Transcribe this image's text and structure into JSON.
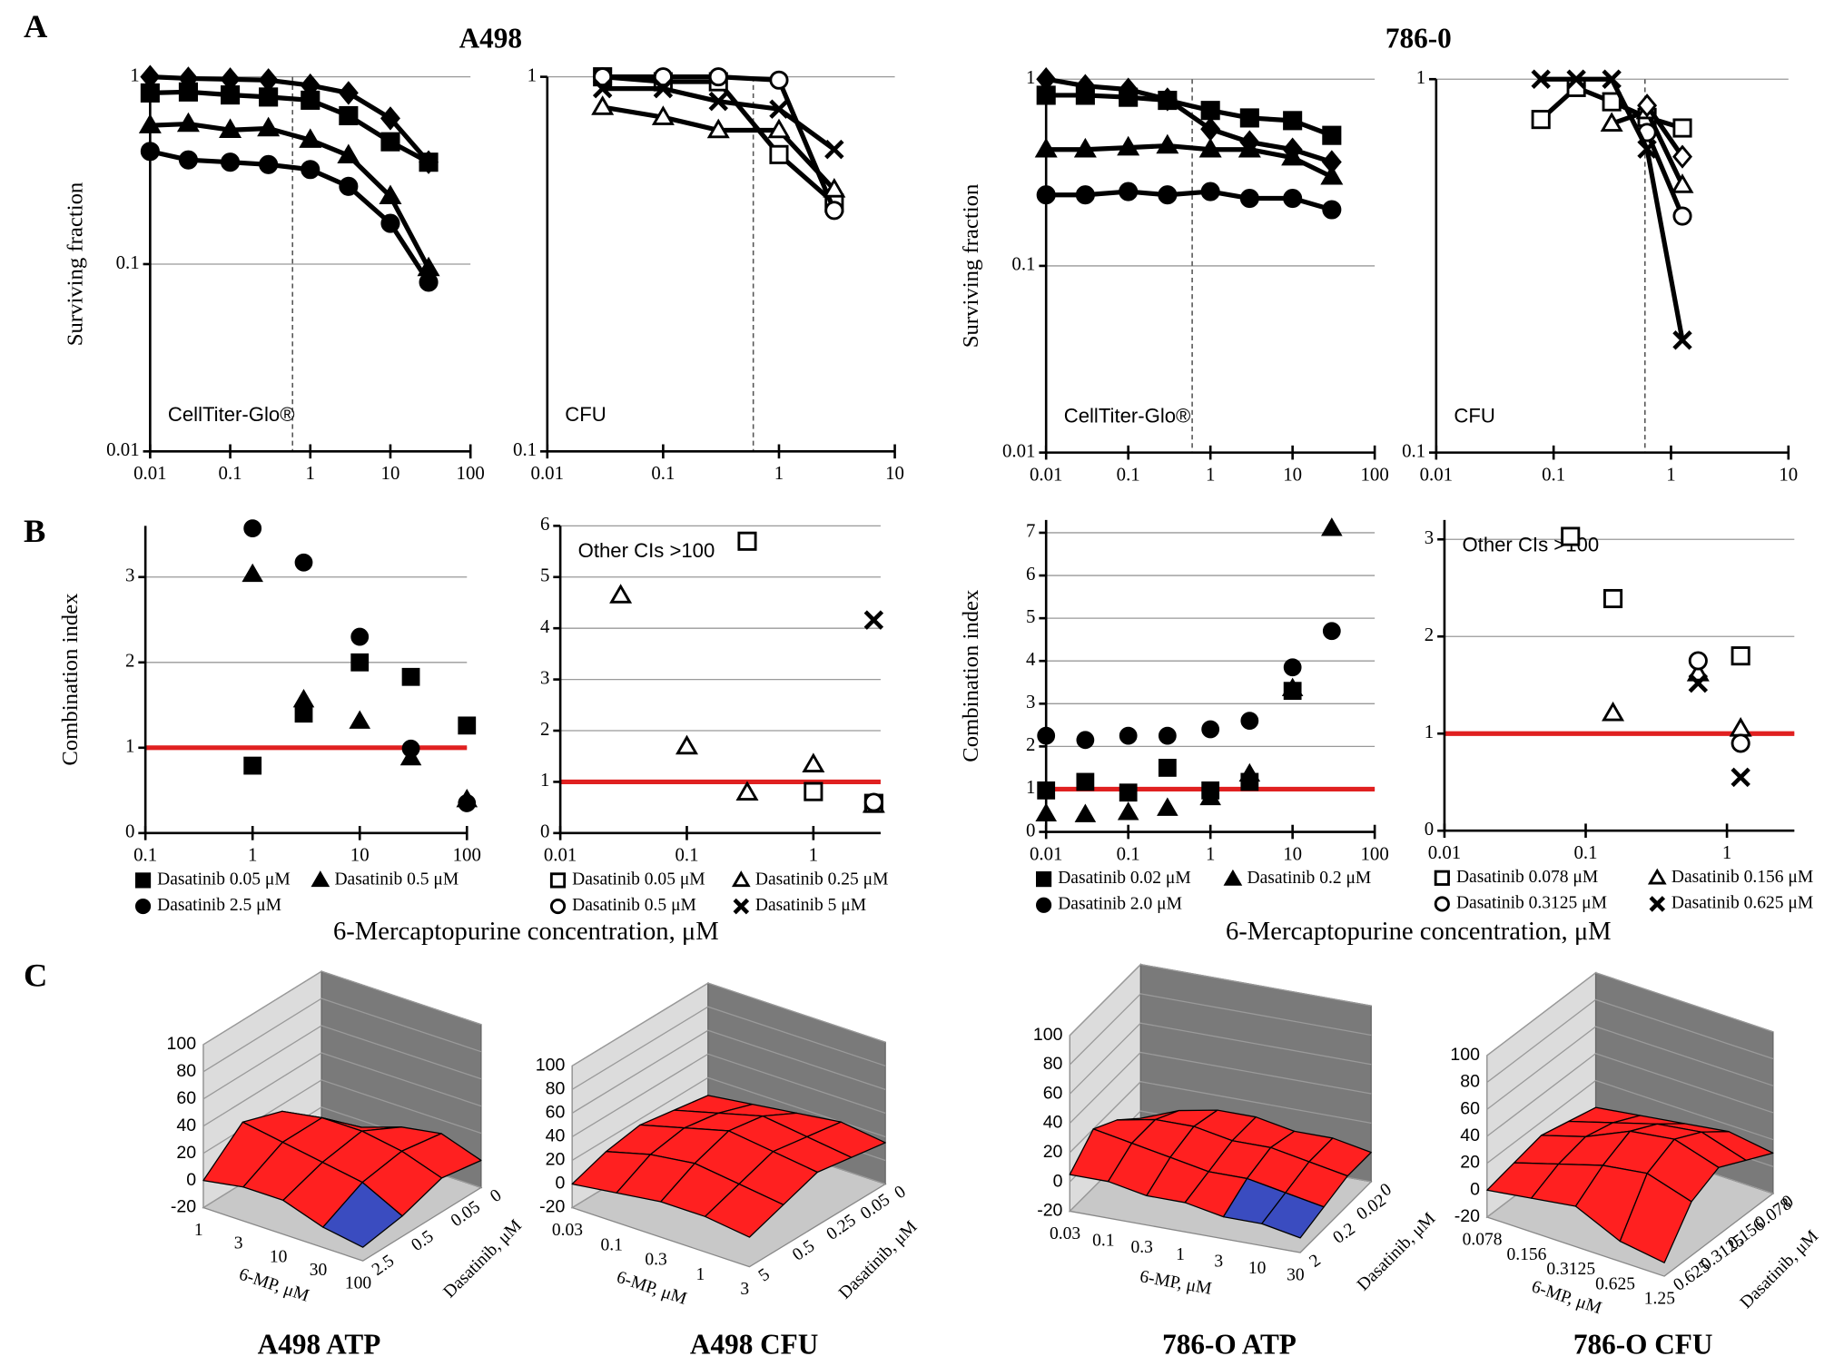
{
  "panel_labels": [
    "A",
    "B",
    "C"
  ],
  "group_titles": [
    "A498",
    "786-0"
  ],
  "shared_x_labels": [
    "6-Mercaptopurine concentration, μM",
    "6-Mercaptopurine concentration, μM"
  ],
  "chart_data": [
    {
      "type": "line",
      "x": [
        0.01,
        0.03,
        0.1,
        0.3,
        1,
        3,
        10,
        30
      ],
      "x_scale": "log",
      "y_scale": "log",
      "xlim": [
        0.01,
        100
      ],
      "ylim": [
        0.01,
        1
      ],
      "xticks": [
        0.01,
        0.1,
        1,
        10,
        100
      ],
      "yticks": [
        0.01,
        0.1,
        1
      ],
      "grid": true,
      "ylabel": "Surviving fraction",
      "annotation": "CellTiter-Glo®",
      "annotation_position": "bottom-left",
      "reference_x": 0.6,
      "reference_color": "#555555",
      "series": [
        {
          "marker": "diamond",
          "filled": true,
          "color": "#000000",
          "values": [
            1.0,
            0.98,
            0.97,
            0.96,
            0.9,
            0.82,
            0.6,
            0.35
          ]
        },
        {
          "marker": "square",
          "filled": true,
          "color": "#000000",
          "values": [
            0.82,
            0.83,
            0.8,
            0.78,
            0.75,
            0.62,
            0.45,
            0.35
          ]
        },
        {
          "marker": "triangle",
          "filled": true,
          "color": "#000000",
          "values": [
            0.55,
            0.56,
            0.52,
            0.53,
            0.46,
            0.38,
            0.23,
            0.095
          ]
        },
        {
          "marker": "circle",
          "filled": true,
          "color": "#000000",
          "values": [
            0.4,
            0.36,
            0.35,
            0.34,
            0.32,
            0.26,
            0.165,
            0.08
          ]
        }
      ]
    },
    {
      "type": "line",
      "x": [
        0.03,
        0.1,
        0.3,
        1,
        3
      ],
      "x_scale": "log",
      "y_scale": "log",
      "xlim": [
        0.01,
        10
      ],
      "ylim": [
        0.1,
        1
      ],
      "xticks": [
        0.01,
        0.1,
        1,
        10
      ],
      "yticks": [
        0.1,
        1
      ],
      "grid": true,
      "annotation": "CFU",
      "annotation_position": "bottom-left",
      "reference_x": 0.6,
      "reference_color": "#555555",
      "series": [
        {
          "marker": "square",
          "filled": false,
          "color": "#000000",
          "values": [
            1.0,
            0.97,
            0.97,
            0.62,
            0.46
          ]
        },
        {
          "marker": "circle",
          "filled": false,
          "color": "#000000",
          "values": [
            1.0,
            1.0,
            1.0,
            0.98,
            0.44
          ]
        },
        {
          "marker": "triangle",
          "filled": false,
          "color": "#000000",
          "values": [
            0.83,
            0.78,
            0.72,
            0.72,
            0.5
          ]
        },
        {
          "marker": "x",
          "filled": true,
          "color": "#000000",
          "values": [
            0.93,
            0.93,
            0.86,
            0.82,
            0.64
          ]
        }
      ]
    },
    {
      "type": "line",
      "x": [
        0.01,
        0.03,
        0.1,
        0.3,
        1,
        3,
        10,
        30
      ],
      "x_scale": "log",
      "y_scale": "log",
      "xlim": [
        0.01,
        100
      ],
      "ylim": [
        0.01,
        1
      ],
      "xticks": [
        0.01,
        0.1,
        1,
        10,
        100
      ],
      "yticks": [
        0.01,
        0.1,
        1
      ],
      "grid": true,
      "ylabel": "Surviving fraction",
      "annotation": "CellTiter-Glo®",
      "annotation_position": "bottom-left",
      "reference_x": 0.6,
      "reference_color": "#555555",
      "series": [
        {
          "marker": "diamond",
          "filled": true,
          "color": "#000000",
          "values": [
            1.0,
            0.92,
            0.88,
            0.78,
            0.54,
            0.46,
            0.42,
            0.36
          ]
        },
        {
          "marker": "square",
          "filled": true,
          "color": "#000000",
          "values": [
            0.82,
            0.82,
            0.8,
            0.77,
            0.68,
            0.62,
            0.6,
            0.5
          ]
        },
        {
          "marker": "triangle",
          "filled": true,
          "color": "#000000",
          "values": [
            0.42,
            0.42,
            0.43,
            0.44,
            0.42,
            0.42,
            0.38,
            0.3
          ]
        },
        {
          "marker": "circle",
          "filled": true,
          "color": "#000000",
          "values": [
            0.24,
            0.24,
            0.25,
            0.24,
            0.25,
            0.23,
            0.23,
            0.2
          ]
        }
      ]
    },
    {
      "type": "line",
      "x": [
        0.078,
        0.156,
        0.3125,
        0.625,
        1.25
      ],
      "x_scale": "log",
      "y_scale": "log",
      "xlim": [
        0.01,
        10
      ],
      "ylim": [
        0.1,
        1
      ],
      "xticks": [
        0.01,
        0.1,
        1,
        10
      ],
      "yticks": [
        0.1,
        1
      ],
      "grid": true,
      "annotation": "CFU",
      "annotation_position": "bottom-left",
      "reference_x": 0.6,
      "reference_color": "#555555",
      "series": [
        {
          "marker": "square",
          "filled": false,
          "color": "#000000",
          "values": [
            0.78,
            0.95,
            0.87,
            0.79,
            0.74
          ]
        },
        {
          "marker": "triangle",
          "filled": false,
          "color": "#000000",
          "values": [
            null,
            null,
            0.76,
            0.82,
            0.52
          ]
        },
        {
          "marker": "diamond",
          "filled": false,
          "color": "#000000",
          "values": [
            null,
            null,
            null,
            0.85,
            0.62
          ]
        },
        {
          "marker": "circle",
          "filled": false,
          "color": "#000000",
          "values": [
            null,
            null,
            null,
            0.72,
            0.43
          ]
        },
        {
          "marker": "x",
          "filled": true,
          "color": "#000000",
          "values": [
            1.0,
            1.0,
            1.0,
            0.65,
            0.2
          ]
        }
      ]
    },
    {
      "type": "scatter",
      "x": [
        1,
        3,
        10,
        30,
        100
      ],
      "x_scale": "log",
      "y_scale": "linear",
      "xlim": [
        0.1,
        100
      ],
      "ylim": [
        0,
        3.6
      ],
      "xticks": [
        0.1,
        1,
        10,
        100
      ],
      "yticks": [
        0,
        1,
        2,
        3
      ],
      "grid": true,
      "ylabel": "Combination index",
      "reference_y": 1,
      "reference_color": "#e02020",
      "legend": "bottom",
      "series": [
        {
          "name": "Dasatinib 0.05 μM",
          "marker": "square",
          "filled": true,
          "color": "#000000",
          "values": [
            0.79,
            1.4,
            2.0,
            1.83,
            1.26
          ]
        },
        {
          "name": "Dasatinib 0.5 μM",
          "marker": "triangle",
          "filled": true,
          "color": "#000000",
          "values": [
            3.03,
            1.56,
            1.31,
            0.88,
            0.39
          ]
        },
        {
          "name": "Dasatinib 2.5 μM",
          "marker": "circle",
          "filled": true,
          "color": "#000000",
          "values": [
            3.57,
            3.17,
            2.3,
            0.99,
            0.35
          ]
        }
      ]
    },
    {
      "type": "scatter",
      "x": [
        0.03,
        0.1,
        0.3,
        1,
        3
      ],
      "x_scale": "log",
      "y_scale": "linear",
      "xlim": [
        0.01,
        3.4
      ],
      "ylim": [
        0,
        6
      ],
      "xticks": [
        0.01,
        0.1,
        1
      ],
      "yticks": [
        0,
        1,
        2,
        3,
        4,
        5,
        6
      ],
      "grid": true,
      "annotation": "Other CIs >100",
      "annotation_position": "top-left",
      "reference_y": 1,
      "reference_color": "#e02020",
      "legend": "bottom",
      "series": [
        {
          "name": "Dasatinib 0.05 μM",
          "marker": "square",
          "filled": false,
          "color": "#000000",
          "values": [
            null,
            null,
            5.7,
            0.81,
            0.58
          ]
        },
        {
          "name": "Dasatinib 0.25 μM",
          "marker": "triangle",
          "filled": false,
          "color": "#000000",
          "values": [
            4.64,
            1.69,
            0.79,
            1.34,
            0.55
          ]
        },
        {
          "name": "Dasatinib 0.5 μM",
          "marker": "circle",
          "filled": false,
          "color": "#000000",
          "values": [
            null,
            null,
            null,
            null,
            0.6
          ]
        },
        {
          "name": "Dasatinib 5 μM",
          "marker": "x",
          "filled": true,
          "color": "#000000",
          "values": [
            null,
            null,
            null,
            null,
            4.16
          ]
        }
      ]
    },
    {
      "type": "scatter",
      "x": [
        0.01,
        0.03,
        0.1,
        0.3,
        1,
        3,
        10,
        30
      ],
      "x_scale": "log",
      "y_scale": "linear",
      "xlim": [
        0.01,
        100
      ],
      "ylim": [
        0,
        7.3
      ],
      "xticks": [
        0.01,
        0.1,
        1,
        10,
        100
      ],
      "yticks": [
        0,
        1,
        2,
        3,
        4,
        5,
        6,
        7
      ],
      "grid": true,
      "ylabel": "Combination index",
      "reference_y": 1,
      "reference_color": "#e02020",
      "legend": "bottom",
      "series": [
        {
          "name": "Dasatinib 0.02 μM",
          "marker": "square",
          "filled": true,
          "color": "#000000",
          "values": [
            0.97,
            1.17,
            0.92,
            1.5,
            0.97,
            1.17,
            3.3,
            null
          ]
        },
        {
          "name": "Dasatinib 0.2 μM",
          "marker": "triangle",
          "filled": true,
          "color": "#000000",
          "values": [
            0.42,
            0.4,
            0.45,
            0.55,
            0.8,
            1.35,
            3.35,
            7.1
          ]
        },
        {
          "name": "Dasatinib 2.0 μM",
          "marker": "circle",
          "filled": true,
          "color": "#000000",
          "values": [
            2.25,
            2.15,
            2.25,
            2.25,
            2.4,
            2.6,
            3.85,
            4.7
          ]
        }
      ]
    },
    {
      "type": "scatter",
      "x": [
        0.078,
        0.156,
        0.625,
        1.25
      ],
      "x_scale": "log",
      "y_scale": "linear",
      "xlim": [
        0.01,
        3
      ],
      "ylim": [
        0,
        3.2
      ],
      "xticks": [
        0.01,
        0.1,
        1
      ],
      "yticks": [
        0,
        1,
        2,
        3
      ],
      "grid": true,
      "annotation": "Other CIs >100",
      "annotation_position": "top-left",
      "reference_y": 1,
      "reference_color": "#e02020",
      "legend": "bottom",
      "series": [
        {
          "name": "Dasatinib 0.078 μM",
          "marker": "square",
          "filled": false,
          "color": "#000000",
          "values": [
            3.03,
            2.39,
            null,
            1.8
          ]
        },
        {
          "name": "Dasatinib 0.156 μM",
          "marker": "triangle",
          "filled": false,
          "color": "#000000",
          "values": [
            null,
            1.21,
            1.62,
            1.05
          ]
        },
        {
          "name": "Dasatinib 0.3125 μM",
          "marker": "circle",
          "filled": false,
          "color": "#000000",
          "values": [
            null,
            null,
            1.75,
            0.9
          ]
        },
        {
          "name": "Dasatinib 0.625 μM",
          "marker": "x",
          "filled": true,
          "color": "#000000",
          "values": [
            null,
            null,
            1.52,
            0.55
          ]
        }
      ]
    },
    {
      "type": "surface",
      "title": "A498 ATP",
      "xlabel": "6-MP, μM",
      "ylabel": "Dasatinib, μM",
      "x_categories": [
        "1",
        "3",
        "10",
        "30",
        "100"
      ],
      "y_categories": [
        "0",
        "0.05",
        "0.5",
        "2.5"
      ],
      "zlim": [
        -20,
        100
      ],
      "zticks": [
        -20,
        0,
        20,
        40,
        60,
        80,
        100
      ],
      "positive_color": "#ff2020",
      "negative_color": "#3a4cc0",
      "values": [
        [
          -10,
          -5,
          5,
          10,
          0
        ],
        [
          15,
          20,
          20,
          15,
          5
        ],
        [
          25,
          20,
          15,
          10,
          -5
        ],
        [
          0,
          5,
          5,
          -5,
          -10
        ]
      ]
    },
    {
      "type": "surface",
      "title": "A498 CFU",
      "xlabel": "6-MP, μM",
      "ylabel": "Dasatinib, μM",
      "x_categories": [
        "0.03",
        "0.1",
        "0.3",
        "1",
        "3"
      ],
      "y_categories": [
        "0",
        "0.05",
        "0.25",
        "0.5",
        "5"
      ],
      "zlim": [
        -20,
        100
      ],
      "zticks": [
        -20,
        0,
        20,
        40,
        60,
        80,
        100
      ],
      "positive_color": "#ff2020",
      "negative_color": "#3a4cc0",
      "values": [
        [
          5,
          10,
          15,
          20,
          15
        ],
        [
          10,
          20,
          30,
          25,
          20
        ],
        [
          15,
          25,
          35,
          30,
          25
        ],
        [
          10,
          20,
          25,
          20,
          15
        ],
        [
          0,
          5,
          10,
          10,
          5
        ]
      ]
    },
    {
      "type": "surface",
      "title": "786-O ATP",
      "xlabel": "6-MP, μM",
      "ylabel": "Dasatinib, μM",
      "x_categories": [
        "0.03",
        "0.1",
        "0.3",
        "1",
        "3",
        "10",
        "30"
      ],
      "y_categories": [
        "0",
        "0.02",
        "0.2",
        "2"
      ],
      "zlim": [
        -20,
        100
      ],
      "zticks": [
        -20,
        0,
        20,
        40,
        60,
        80,
        100
      ],
      "positive_color": "#ff2020",
      "negative_color": "#3a4cc0",
      "values": [
        [
          -5,
          5,
          10,
          10,
          5,
          5,
          0
        ],
        [
          10,
          15,
          15,
          10,
          10,
          5,
          0
        ],
        [
          20,
          15,
          10,
          5,
          5,
          0,
          -5
        ],
        [
          5,
          5,
          0,
          0,
          -5,
          -5,
          -10
        ]
      ]
    },
    {
      "type": "surface",
      "title": "786-O CFU",
      "xlabel": "6-MP, μM",
      "ylabel": "Dasatinib, μM",
      "x_categories": [
        "0.078",
        "0.156",
        "0.3125",
        "0.625",
        "1.25"
      ],
      "y_categories": [
        "0",
        "0.078",
        "0.156",
        "0.3125",
        "0.625"
      ],
      "zlim": [
        -20,
        100
      ],
      "zticks": [
        -20,
        0,
        20,
        40,
        60,
        80,
        100
      ],
      "positive_color": "#ff2020",
      "negative_color": "#3a4cc0",
      "values": [
        [
          0,
          5,
          10,
          15,
          10
        ],
        [
          5,
          15,
          25,
          30,
          20
        ],
        [
          10,
          20,
          35,
          40,
          30
        ],
        [
          5,
          15,
          25,
          30,
          20
        ],
        [
          0,
          5,
          10,
          -5,
          -10
        ]
      ]
    }
  ]
}
